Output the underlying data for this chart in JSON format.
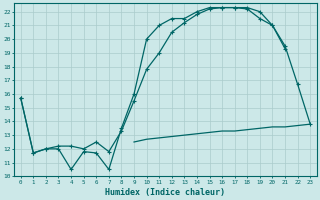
{
  "xlabel": "Humidex (Indice chaleur)",
  "background_color": "#cce8e8",
  "grid_color": "#aacccc",
  "line_color": "#006666",
  "xlim": [
    -0.5,
    23.5
  ],
  "ylim": [
    10,
    22.6
  ],
  "yticks": [
    10,
    11,
    12,
    13,
    14,
    15,
    16,
    17,
    18,
    19,
    20,
    21,
    22
  ],
  "xticks": [
    0,
    1,
    2,
    3,
    4,
    5,
    6,
    7,
    8,
    9,
    10,
    11,
    12,
    13,
    14,
    15,
    16,
    17,
    18,
    19,
    20,
    21,
    22,
    23
  ],
  "line1_x": [
    0,
    1,
    2,
    3,
    4,
    5,
    6,
    7,
    8,
    9,
    10,
    11,
    12,
    13,
    14,
    15,
    16,
    17,
    18,
    19,
    20,
    21
  ],
  "line1_y": [
    15.7,
    11.7,
    12.0,
    12.0,
    10.5,
    11.8,
    11.7,
    10.5,
    13.5,
    16.0,
    20.0,
    21.0,
    21.5,
    21.5,
    22.0,
    22.3,
    22.3,
    22.3,
    22.2,
    21.5,
    21.0,
    19.3
  ],
  "line2_x": [
    0,
    1,
    2,
    3,
    4,
    5,
    6,
    7,
    8,
    9,
    10,
    11,
    12,
    13,
    14,
    15,
    16,
    17,
    18,
    19,
    20,
    21,
    22,
    23
  ],
  "line2_y": [
    15.7,
    11.7,
    12.0,
    12.2,
    12.2,
    12.0,
    12.5,
    11.8,
    13.3,
    15.5,
    17.8,
    19.0,
    20.5,
    21.2,
    21.8,
    22.2,
    22.3,
    22.3,
    22.3,
    22.0,
    21.0,
    19.5,
    16.7,
    13.8
  ],
  "line3_x": [
    9,
    10,
    11,
    12,
    13,
    14,
    15,
    16,
    17,
    18,
    19,
    20,
    21,
    22,
    23
  ],
  "line3_y": [
    12.5,
    12.7,
    12.8,
    12.9,
    13.0,
    13.1,
    13.2,
    13.3,
    13.3,
    13.4,
    13.5,
    13.6,
    13.6,
    13.7,
    13.8
  ]
}
